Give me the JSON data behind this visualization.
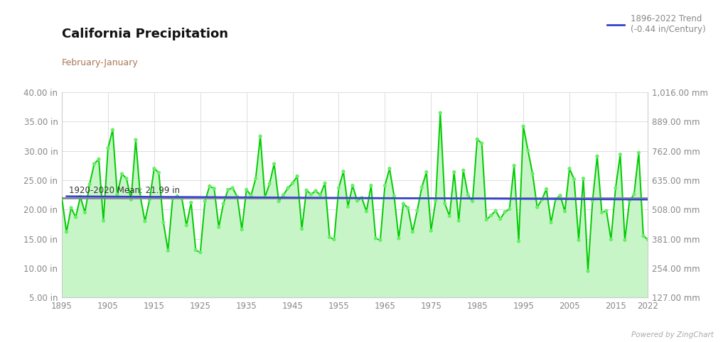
{
  "title": "California Precipitation",
  "subtitle": "February-January",
  "mean_label": "1920-2020 Mean: 21.99 in",
  "mean_value": 21.99,
  "trend_label": "1896-2022 Trend\n(-0.44 in/Century)",
  "trend_rate": -0.44,
  "trend_start_year": 1896,
  "trend_end_year": 2022,
  "watermark": "Powered by ZingChart",
  "years": [
    1895,
    1896,
    1897,
    1898,
    1899,
    1900,
    1901,
    1902,
    1903,
    1904,
    1905,
    1906,
    1907,
    1908,
    1909,
    1910,
    1911,
    1912,
    1913,
    1914,
    1915,
    1916,
    1917,
    1918,
    1919,
    1920,
    1921,
    1922,
    1923,
    1924,
    1925,
    1926,
    1927,
    1928,
    1929,
    1930,
    1931,
    1932,
    1933,
    1934,
    1935,
    1936,
    1937,
    1938,
    1939,
    1940,
    1941,
    1942,
    1943,
    1944,
    1945,
    1946,
    1947,
    1948,
    1949,
    1950,
    1951,
    1952,
    1953,
    1954,
    1955,
    1956,
    1957,
    1958,
    1959,
    1960,
    1961,
    1962,
    1963,
    1964,
    1965,
    1966,
    1967,
    1968,
    1969,
    1970,
    1971,
    1972,
    1973,
    1974,
    1975,
    1976,
    1977,
    1978,
    1979,
    1980,
    1981,
    1982,
    1983,
    1984,
    1985,
    1986,
    1987,
    1988,
    1989,
    1990,
    1991,
    1992,
    1993,
    1994,
    1995,
    1996,
    1997,
    1998,
    1999,
    2000,
    2001,
    2002,
    2003,
    2004,
    2005,
    2006,
    2007,
    2008,
    2009,
    2010,
    2011,
    2012,
    2013,
    2014,
    2015,
    2016,
    2017,
    2018,
    2019,
    2020,
    2021,
    2022
  ],
  "values": [
    21.9,
    16.2,
    20.3,
    18.7,
    22.2,
    19.5,
    24.3,
    27.8,
    28.6,
    18.1,
    30.5,
    33.6,
    22.6,
    26.1,
    25.3,
    21.7,
    31.9,
    22.2,
    18.0,
    21.7,
    27.0,
    26.3,
    17.8,
    13.0,
    21.9,
    22.3,
    21.9,
    17.3,
    21.2,
    13.1,
    12.7,
    21.4,
    24.0,
    23.6,
    17.0,
    21.0,
    23.4,
    23.7,
    22.2,
    16.6,
    23.4,
    22.4,
    25.3,
    32.5,
    22.1,
    24.4,
    27.8,
    21.4,
    22.5,
    23.7,
    24.5,
    25.7,
    16.7,
    23.3,
    22.6,
    23.2,
    22.5,
    24.5,
    15.3,
    14.9,
    23.7,
    26.5,
    20.5,
    24.1,
    21.5,
    22.0,
    19.7,
    24.1,
    15.1,
    14.8,
    24.1,
    27.0,
    22.3,
    15.1,
    21.0,
    20.3,
    16.2,
    19.8,
    23.8,
    26.4,
    16.4,
    21.5,
    36.5,
    21.0,
    18.9,
    26.4,
    18.1,
    26.7,
    22.5,
    21.4,
    32.0,
    31.3,
    18.3,
    19.0,
    19.8,
    18.4,
    19.6,
    20.1,
    27.5,
    14.6,
    34.2,
    30.1,
    26.1,
    20.4,
    21.7,
    23.5,
    17.8,
    21.8,
    22.4,
    19.7,
    27.0,
    25.2,
    14.8,
    25.3,
    9.5,
    21.5,
    29.1,
    19.5,
    19.8,
    14.9,
    23.7,
    29.4,
    14.8,
    21.5,
    22.6,
    29.7,
    15.5,
    14.9
  ],
  "ylim_min": 5.0,
  "ylim_max": 40.0,
  "yticks_left": [
    5.0,
    10.0,
    15.0,
    20.0,
    25.0,
    30.0,
    35.0,
    40.0
  ],
  "ytick_labels_left": [
    "5.00 in",
    "10.00 in",
    "15.00 in",
    "20.00 in",
    "25.00 in",
    "30.00 in",
    "35.00 in",
    "40.00 in"
  ],
  "yticks_right_vals": [
    127.0,
    254.0,
    381.0,
    508.0,
    635.0,
    762.0,
    889.0,
    1016.0
  ],
  "ytick_labels_right": [
    "127.00 mm",
    "254.00 mm",
    "381.00 mm",
    "508.00 mm",
    "635.00 mm",
    "762.00 mm",
    "889.00 mm",
    "1,016.00 mm"
  ],
  "xticks": [
    1895,
    1905,
    1915,
    1925,
    1935,
    1945,
    1955,
    1965,
    1975,
    1985,
    1995,
    2005,
    2015,
    2022
  ],
  "line_color": "#00cc00",
  "dot_color": "#66ee66",
  "fill_color": "#c8f5c8",
  "mean_line_color": "#888899",
  "trend_line_color": "#3344cc",
  "bg_color": "#ffffff",
  "plot_bg_color": "#ffffff",
  "grid_color": "#dddddd",
  "title_color": "#111111",
  "subtitle_color": "#aa7755",
  "axis_label_color": "#888888",
  "title_fontsize": 13,
  "subtitle_fontsize": 9,
  "tick_fontsize": 8.5,
  "legend_fontsize": 8.5,
  "mean_text_color": "#333333"
}
